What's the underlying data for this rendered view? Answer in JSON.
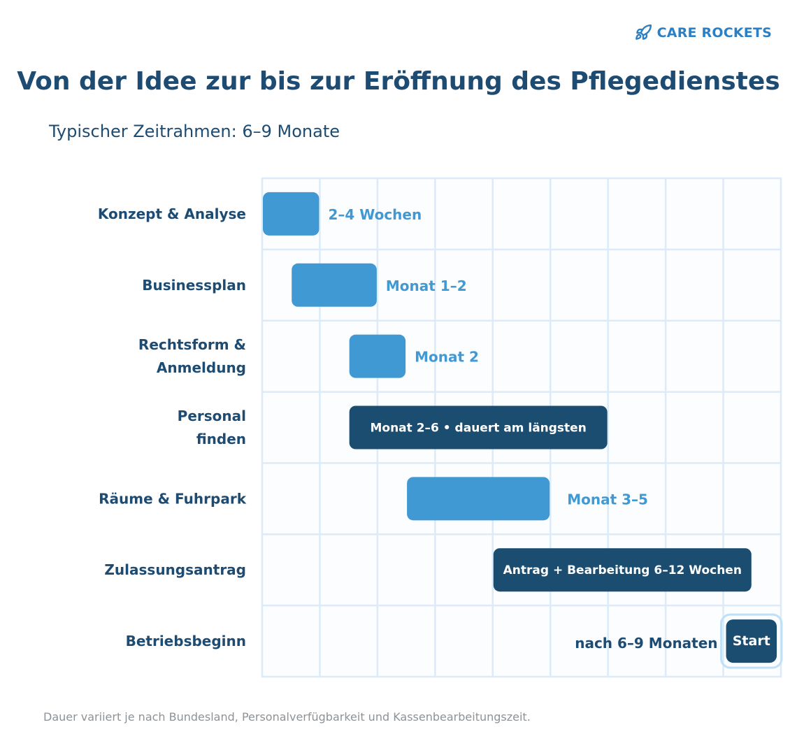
{
  "brand": {
    "name": "CARE ROCKETS",
    "icon": "rocket-icon",
    "color": "#2b7fc4"
  },
  "title": "Von der Idee zur bis zur Eröffnung des Pflegedienstes",
  "subtitle": "Typischer Zeitrahmen: 6–9 Monate",
  "footnote": "Dauer variiert je nach Bundesland, Personalverfügbarkeit und Kassenbearbeitungszeit.",
  "colors": {
    "light_bar": "#4199d3",
    "dark_bar": "#1b4d70",
    "text_dark": "#1e4b71",
    "grid": "#dcebf7"
  },
  "chart_data": {
    "type": "gantt",
    "x_unit": "Monat",
    "xlim": [
      0,
      9
    ],
    "grid": true,
    "tasks": [
      {
        "name": "Konzept & Analyse",
        "label_lines": [
          "Konzept & Analyse"
        ],
        "start": 0,
        "end": 1,
        "style": "light",
        "annotation": "2–4 Wochen",
        "annotation_position": "right"
      },
      {
        "name": "Businessplan",
        "label_lines": [
          "Businessplan"
        ],
        "start": 0.5,
        "end": 2,
        "style": "light",
        "annotation": "Monat 1–2",
        "annotation_position": "right"
      },
      {
        "name": "Rechtsform & Anmeldung",
        "label_lines": [
          "Rechtsform &",
          "Anmeldung"
        ],
        "start": 1.5,
        "end": 2.5,
        "style": "light",
        "annotation": "Monat 2",
        "annotation_position": "right"
      },
      {
        "name": "Personal finden",
        "label_lines": [
          "Personal",
          "finden"
        ],
        "start": 1.5,
        "end": 6,
        "style": "dark",
        "annotation": "Monat 2–6 • dauert am längsten",
        "annotation_position": "inside"
      },
      {
        "name": "Räume & Fuhrpark",
        "label_lines": [
          "Räume & Fuhrpark"
        ],
        "start": 2.5,
        "end": 5,
        "style": "light",
        "annotation": "Monat 3–5",
        "annotation_position": "right"
      },
      {
        "name": "Zulassungsantrag",
        "label_lines": [
          "Zulassungsantrag"
        ],
        "start": 4,
        "end": 8.5,
        "style": "dark",
        "annotation": "Antrag + Bearbeitung 6–12 Wochen",
        "annotation_position": "inside"
      },
      {
        "name": "Betriebsbeginn",
        "label_lines": [
          "Betriebsbeginn"
        ],
        "start": 8,
        "end": 9,
        "style": "milestone",
        "annotation": "nach 6–9 Monaten",
        "annotation_position": "left",
        "milestone_label": "Start"
      }
    ]
  }
}
